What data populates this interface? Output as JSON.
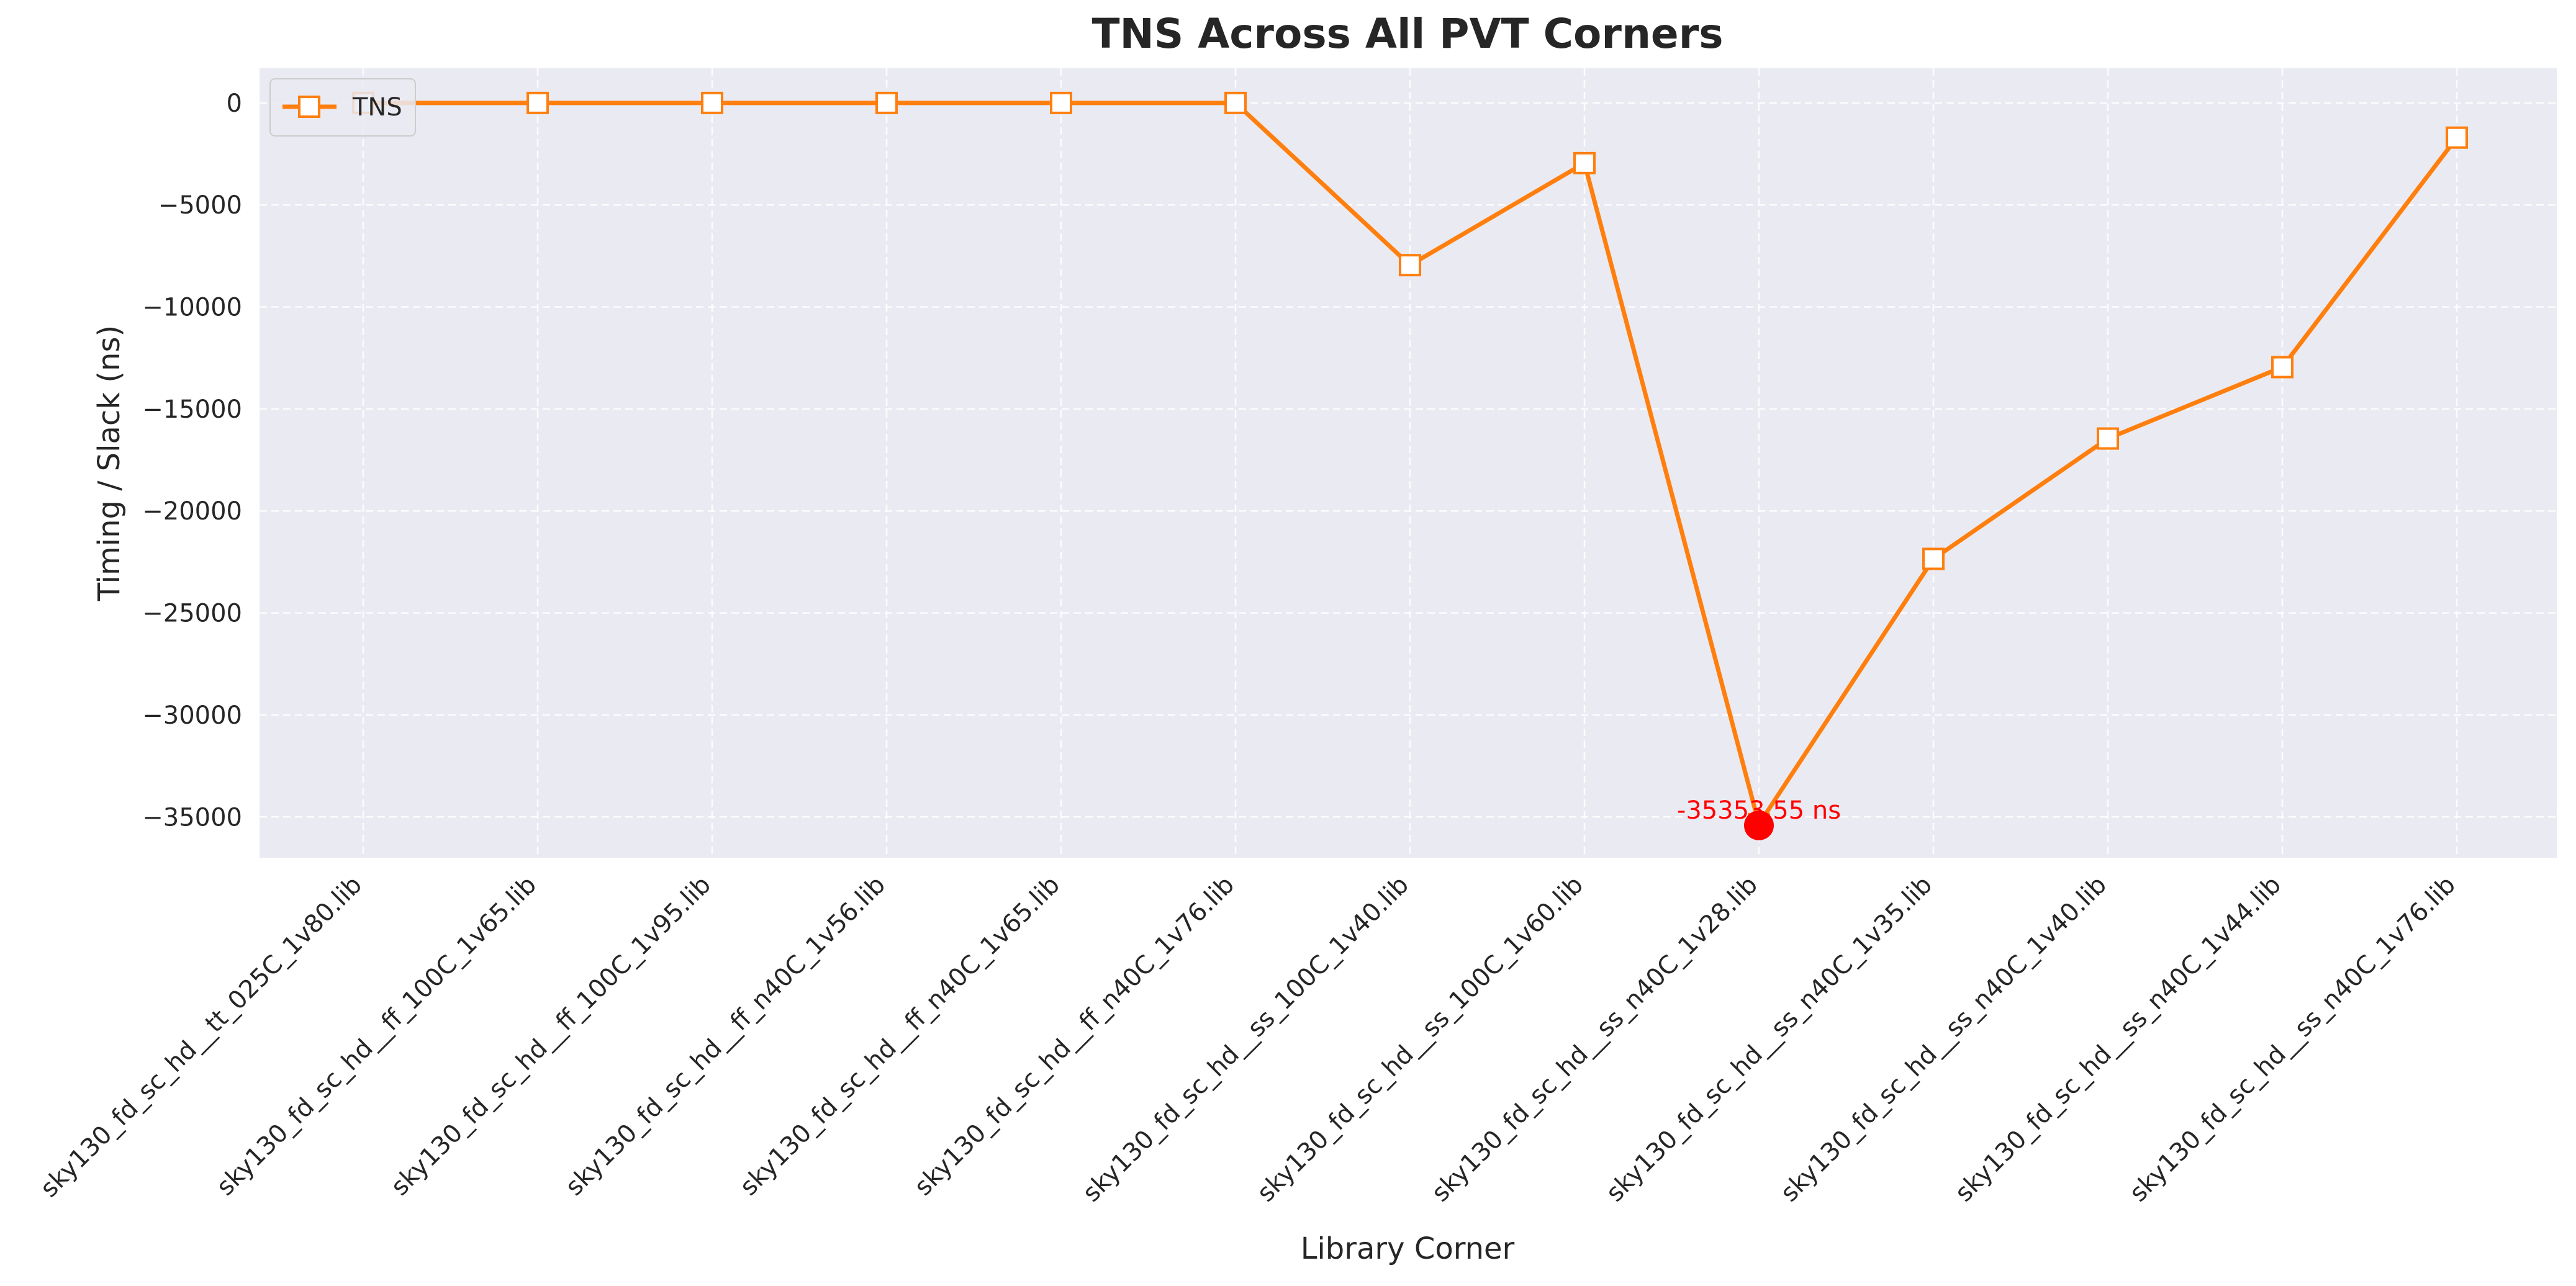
{
  "chart_data": {
    "type": "line",
    "title": "TNS Across All PVT Corners",
    "xlabel": "Library Corner",
    "ylabel": "Timing / Slack (ns)",
    "ylim": [
      -37000,
      1700
    ],
    "yticks": [
      0,
      -5000,
      -10000,
      -15000,
      -20000,
      -25000,
      -30000,
      -35000
    ],
    "ytick_labels": [
      "0",
      "−5000",
      "−10000",
      "−15000",
      "−20000",
      "−25000",
      "−30000",
      "−35000"
    ],
    "grid": true,
    "legend": {
      "position": "top-left",
      "entries": [
        "TNS"
      ]
    },
    "categories": [
      "sky130_fd_sc_hd__tt_025C_1v80.lib",
      "sky130_fd_sc_hd__ff_100C_1v65.lib",
      "sky130_fd_sc_hd__ff_100C_1v95.lib",
      "sky130_fd_sc_hd__ff_n40C_1v56.lib",
      "sky130_fd_sc_hd__ff_n40C_1v65.lib",
      "sky130_fd_sc_hd__ff_n40C_1v76.lib",
      "sky130_fd_sc_hd__ss_100C_1v40.lib",
      "sky130_fd_sc_hd__ss_100C_1v60.lib",
      "sky130_fd_sc_hd__ss_n40C_1v28.lib",
      "sky130_fd_sc_hd__ss_n40C_1v35.lib",
      "sky130_fd_sc_hd__ss_n40C_1v40.lib",
      "sky130_fd_sc_hd__ss_n40C_1v44.lib",
      "sky130_fd_sc_hd__ss_n40C_1v76.lib"
    ],
    "series": [
      {
        "name": "TNS",
        "color": "#ff7f0e",
        "marker": "square",
        "values": [
          0,
          0,
          0,
          0,
          0,
          0,
          -7950,
          -2950,
          -35353.55,
          -22350,
          -16450,
          -12950,
          -1700
        ]
      }
    ],
    "annotation": {
      "category_index": 8,
      "value": -35353.55,
      "label": "-35353.55 ns",
      "color": "#ff0000"
    },
    "colors": {
      "plot_background": "#eaeaf2",
      "grid": "#ffffff",
      "text": "#262626",
      "highlight": "#ff0000"
    }
  }
}
